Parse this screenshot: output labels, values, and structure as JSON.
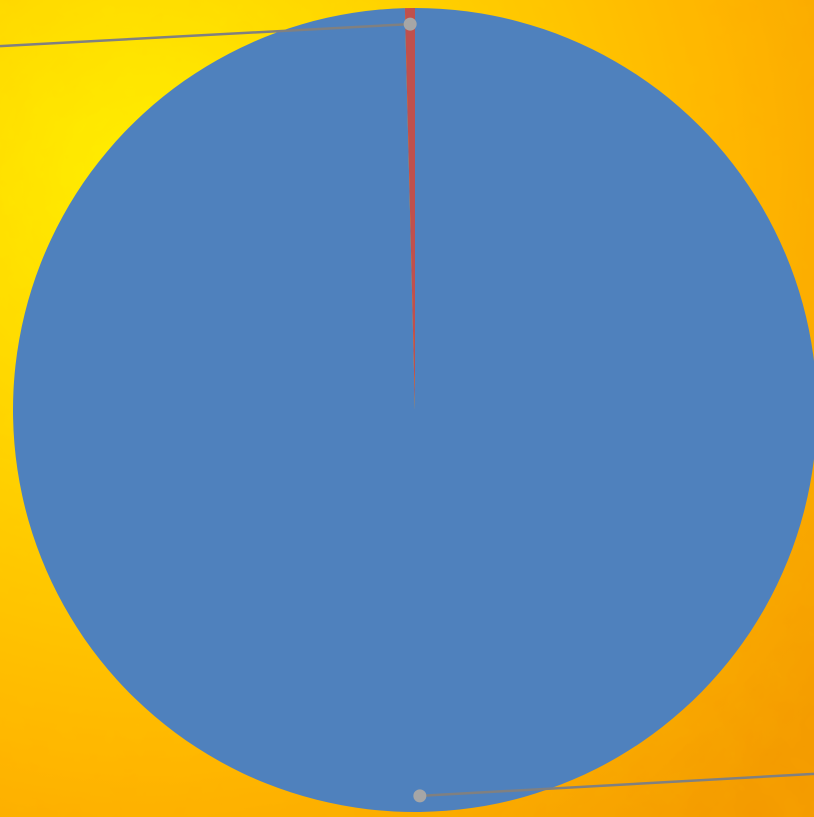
{
  "chart_data": {
    "type": "pie",
    "title": "",
    "start_angle_deg": 0,
    "direction": "clockwise",
    "slices": [
      {
        "name": "",
        "value": 99.6,
        "color": "#4f81bd"
      },
      {
        "name": "",
        "value": 0.4,
        "color": "#c0504d"
      }
    ],
    "leader_lines": true,
    "legend": "none"
  },
  "background": {
    "style": "yellow-orange mottled texture",
    "colors": [
      "#fff000",
      "#ffd200",
      "#ffb000",
      "#f59a00"
    ]
  },
  "leader_line_color": "#808080",
  "leader_dot_color": "#a6a6a6"
}
